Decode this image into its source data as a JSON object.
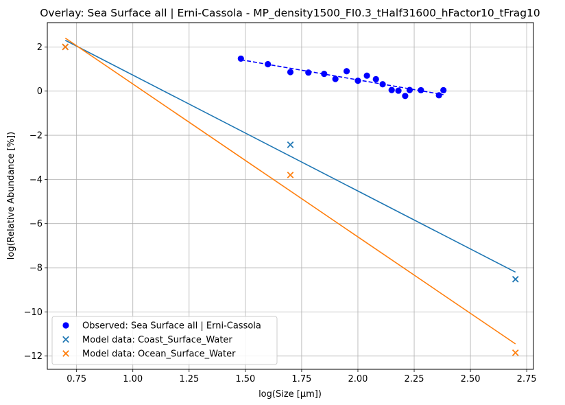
{
  "chart_data": {
    "type": "scatter",
    "title": "Overlay: Sea Surface all | Erni-Cassola - MP_density1500_FI0.3_tHalf31600_hFactor10_tFrag10",
    "xlabel": "log(Size [µm])",
    "ylabel": "log(Relative Abundance [%])",
    "xlim": [
      0.62,
      2.78
    ],
    "ylim": [
      -12.6,
      3.1
    ],
    "xticks": [
      0.75,
      1.0,
      1.25,
      1.5,
      1.75,
      2.0,
      2.25,
      2.5,
      2.75
    ],
    "xtick_labels": [
      "0.75",
      "1.00",
      "1.25",
      "1.50",
      "1.75",
      "2.00",
      "2.25",
      "2.50",
      "2.75"
    ],
    "yticks": [
      2,
      0,
      -2,
      -4,
      -6,
      -8,
      -10,
      -12
    ],
    "ytick_labels": [
      "2",
      "0",
      "−2",
      "−4",
      "−6",
      "−8",
      "−10",
      "−12"
    ],
    "grid": true,
    "legend_position": "lower-left",
    "series": [
      {
        "name": "Observed: Sea Surface all | Erni-Cassola",
        "marker": "circle",
        "color": "#0000ff",
        "points": [
          [
            1.48,
            1.47
          ],
          [
            1.6,
            1.22
          ],
          [
            1.7,
            0.86
          ],
          [
            1.78,
            0.84
          ],
          [
            1.85,
            0.78
          ],
          [
            1.9,
            0.55
          ],
          [
            1.95,
            0.9
          ],
          [
            2.0,
            0.47
          ],
          [
            2.04,
            0.7
          ],
          [
            2.08,
            0.54
          ],
          [
            2.11,
            0.31
          ],
          [
            2.15,
            0.05
          ],
          [
            2.18,
            0.02
          ],
          [
            2.21,
            -0.22
          ],
          [
            2.23,
            0.05
          ],
          [
            2.28,
            0.04
          ],
          [
            2.36,
            -0.19
          ],
          [
            2.38,
            0.04
          ]
        ],
        "fit": {
          "x": [
            1.48,
            2.38
          ],
          "y": [
            1.42,
            -0.16
          ],
          "style": "dashed"
        }
      },
      {
        "name": "Model data: Coast_Surface_Water",
        "marker": "x",
        "color": "#1f77b4",
        "points": [
          [
            0.7,
            2.0
          ],
          [
            1.7,
            -2.43
          ],
          [
            2.7,
            -8.52
          ]
        ],
        "fit": {
          "x": [
            0.7,
            2.7
          ],
          "y": [
            2.3,
            -8.2
          ],
          "style": "solid"
        }
      },
      {
        "name": "Model data: Ocean_Surface_Water",
        "marker": "x",
        "color": "#ff7f0e",
        "points": [
          [
            0.7,
            2.0
          ],
          [
            1.7,
            -3.8
          ],
          [
            2.7,
            -11.85
          ]
        ],
        "fit": {
          "x": [
            0.7,
            2.7
          ],
          "y": [
            2.4,
            -11.45
          ],
          "style": "solid"
        }
      }
    ]
  }
}
